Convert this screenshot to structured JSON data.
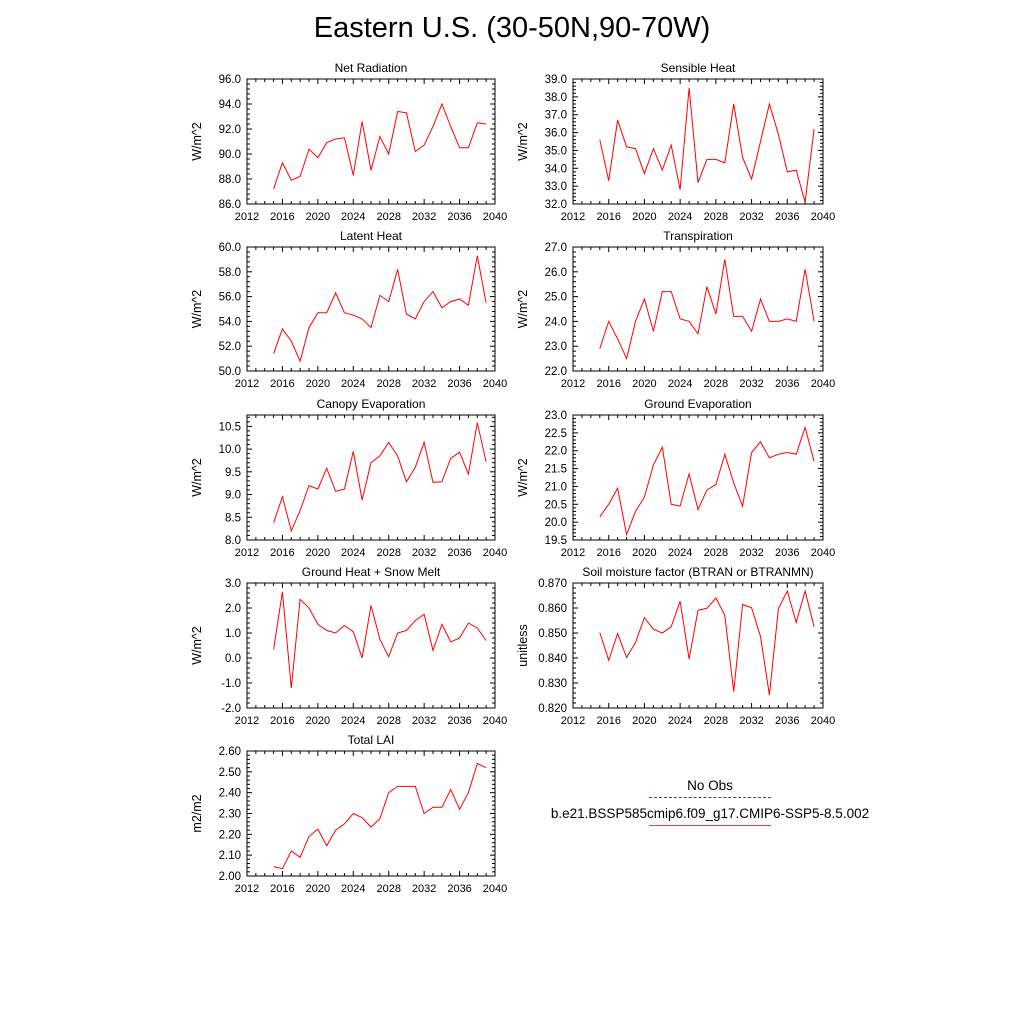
{
  "title": "Eastern U.S. (30-50N,90-70W)",
  "legend": {
    "items": [
      {
        "label": "No Obs",
        "color": "#3b3ba0",
        "style": "dashed"
      },
      {
        "label": "b.e21.BSSP585cmip6.f09_g17.CMIP6-SSP5-8.5.002",
        "color": "#ff0000",
        "style": "solid"
      }
    ]
  },
  "line_color": "#ff0000",
  "chart_data": [
    {
      "type": "line",
      "title": "Net Radiation",
      "ylabel": "W/m^2",
      "xlim": [
        2012,
        2040
      ],
      "xticks": [
        2012,
        2016,
        2020,
        2024,
        2028,
        2032,
        2036,
        2040
      ],
      "ylim": [
        86.0,
        96.0
      ],
      "yticks": [
        "86.0",
        "88.0",
        "90.0",
        "92.0",
        "94.0",
        "96.0"
      ],
      "x": [
        2015,
        2016,
        2017,
        2018,
        2019,
        2020,
        2021,
        2022,
        2023,
        2024,
        2025,
        2026,
        2027,
        2028,
        2029,
        2030,
        2031,
        2032,
        2033,
        2034,
        2035,
        2036,
        2037,
        2038,
        2039
      ],
      "y": [
        87.2,
        89.3,
        87.9,
        88.2,
        90.4,
        89.7,
        90.9,
        91.2,
        91.3,
        88.3,
        92.6,
        88.7,
        91.4,
        90.0,
        93.4,
        93.3,
        90.2,
        90.7,
        92.2,
        94.0,
        92.2,
        90.5,
        90.5,
        92.5,
        92.4
      ]
    },
    {
      "type": "line",
      "title": "Sensible Heat",
      "ylabel": "W/m^2",
      "xlim": [
        2012,
        2040
      ],
      "xticks": [
        2012,
        2016,
        2020,
        2024,
        2028,
        2032,
        2036,
        2040
      ],
      "ylim": [
        32.0,
        39.0
      ],
      "yticks": [
        "32.0",
        "33.0",
        "34.0",
        "35.0",
        "36.0",
        "37.0",
        "38.0",
        "39.0"
      ],
      "x": [
        2015,
        2016,
        2017,
        2018,
        2019,
        2020,
        2021,
        2022,
        2023,
        2024,
        2025,
        2026,
        2027,
        2028,
        2029,
        2030,
        2031,
        2032,
        2033,
        2034,
        2035,
        2036,
        2037,
        2038,
        2039
      ],
      "y": [
        35.6,
        33.3,
        36.7,
        35.2,
        35.1,
        33.7,
        35.1,
        33.9,
        35.3,
        32.8,
        38.5,
        33.2,
        34.5,
        34.5,
        34.3,
        37.6,
        34.6,
        33.4,
        35.5,
        37.6,
        35.9,
        33.8,
        33.9,
        32.1,
        36.2
      ]
    },
    {
      "type": "line",
      "title": "Latent Heat",
      "ylabel": "W/m^2",
      "xlim": [
        2012,
        2040
      ],
      "xticks": [
        2012,
        2016,
        2020,
        2024,
        2028,
        2032,
        2036,
        2040
      ],
      "ylim": [
        50.0,
        60.0
      ],
      "yticks": [
        "50.0",
        "52.0",
        "54.0",
        "56.0",
        "58.0",
        "60.0"
      ],
      "x": [
        2015,
        2016,
        2017,
        2018,
        2019,
        2020,
        2021,
        2022,
        2023,
        2024,
        2025,
        2026,
        2027,
        2028,
        2029,
        2030,
        2031,
        2032,
        2033,
        2034,
        2035,
        2036,
        2037,
        2038,
        2039
      ],
      "y": [
        51.4,
        53.4,
        52.4,
        50.8,
        53.5,
        54.7,
        54.7,
        56.3,
        54.7,
        54.5,
        54.2,
        53.5,
        56.1,
        55.6,
        58.2,
        54.6,
        54.2,
        55.6,
        56.4,
        55.1,
        55.6,
        55.8,
        55.3,
        59.3,
        55.5
      ]
    },
    {
      "type": "line",
      "title": "Transpiration",
      "ylabel": "W/m^2",
      "xlim": [
        2012,
        2040
      ],
      "xticks": [
        2012,
        2016,
        2020,
        2024,
        2028,
        2032,
        2036,
        2040
      ],
      "ylim": [
        22.0,
        27.0
      ],
      "yticks": [
        "22.0",
        "23.0",
        "24.0",
        "25.0",
        "26.0",
        "27.0"
      ],
      "x": [
        2015,
        2016,
        2017,
        2018,
        2019,
        2020,
        2021,
        2022,
        2023,
        2024,
        2025,
        2026,
        2027,
        2028,
        2029,
        2030,
        2031,
        2032,
        2033,
        2034,
        2035,
        2036,
        2037,
        2038,
        2039
      ],
      "y": [
        22.9,
        24.0,
        23.3,
        22.5,
        24.0,
        24.9,
        23.6,
        25.2,
        25.2,
        24.1,
        24.0,
        23.5,
        25.4,
        24.3,
        26.5,
        24.2,
        24.2,
        23.6,
        24.9,
        24.0,
        24.0,
        24.1,
        24.0,
        26.1,
        24.0
      ]
    },
    {
      "type": "line",
      "title": "Canopy Evaporation",
      "ylabel": "W/m^2",
      "xlim": [
        2012,
        2040
      ],
      "xticks": [
        2012,
        2016,
        2020,
        2024,
        2028,
        2032,
        2036,
        2040
      ],
      "ylim": [
        8.0,
        10.75
      ],
      "yticks": [
        "8.0",
        "8.5",
        "9.0",
        "9.5",
        "10.0",
        "10.5"
      ],
      "ytickvals": [
        8.0,
        8.5,
        9.0,
        9.5,
        10.0,
        10.5
      ],
      "x": [
        2015,
        2016,
        2017,
        2018,
        2019,
        2020,
        2021,
        2022,
        2023,
        2024,
        2025,
        2026,
        2027,
        2028,
        2029,
        2030,
        2031,
        2032,
        2033,
        2034,
        2035,
        2036,
        2037,
        2038,
        2039
      ],
      "y": [
        8.38,
        8.95,
        8.2,
        8.65,
        9.2,
        9.12,
        9.58,
        9.07,
        9.12,
        9.95,
        8.88,
        9.7,
        9.85,
        10.15,
        9.85,
        9.28,
        9.6,
        10.15,
        9.27,
        9.28,
        9.8,
        9.93,
        9.45,
        10.58,
        9.72
      ]
    },
    {
      "type": "line",
      "title": "Ground Evaporation",
      "ylabel": "W/m^2",
      "xlim": [
        2012,
        2040
      ],
      "xticks": [
        2012,
        2016,
        2020,
        2024,
        2028,
        2032,
        2036,
        2040
      ],
      "ylim": [
        19.5,
        23.0
      ],
      "yticks": [
        "19.5",
        "20.0",
        "20.5",
        "21.0",
        "21.5",
        "22.0",
        "22.5",
        "23.0"
      ],
      "x": [
        2015,
        2016,
        2017,
        2018,
        2019,
        2020,
        2021,
        2022,
        2023,
        2024,
        2025,
        2026,
        2027,
        2028,
        2029,
        2030,
        2031,
        2032,
        2033,
        2034,
        2035,
        2036,
        2037,
        2038,
        2039
      ],
      "y": [
        20.15,
        20.5,
        20.95,
        19.65,
        20.3,
        20.7,
        21.6,
        22.1,
        20.5,
        20.45,
        21.35,
        20.35,
        20.9,
        21.05,
        21.9,
        21.1,
        20.45,
        21.95,
        22.25,
        21.8,
        21.9,
        21.95,
        21.9,
        22.65,
        21.7
      ]
    },
    {
      "type": "line",
      "title": "Ground Heat + Snow Melt",
      "ylabel": "W/m^2",
      "xlim": [
        2012,
        2040
      ],
      "xticks": [
        2012,
        2016,
        2020,
        2024,
        2028,
        2032,
        2036,
        2040
      ],
      "ylim": [
        -2.0,
        3.0
      ],
      "yticks": [
        "-2.0",
        "-1.0",
        "0.0",
        "1.0",
        "2.0",
        "3.0"
      ],
      "x": [
        2015,
        2016,
        2017,
        2018,
        2019,
        2020,
        2021,
        2022,
        2023,
        2024,
        2025,
        2026,
        2027,
        2028,
        2029,
        2030,
        2031,
        2032,
        2033,
        2034,
        2035,
        2036,
        2037,
        2038,
        2039
      ],
      "y": [
        0.35,
        2.65,
        -1.2,
        2.35,
        2.0,
        1.35,
        1.1,
        1.0,
        1.3,
        1.05,
        0.0,
        2.1,
        0.75,
        0.05,
        1.0,
        1.1,
        1.5,
        1.75,
        0.3,
        1.35,
        0.65,
        0.8,
        1.4,
        1.2,
        0.7
      ]
    },
    {
      "type": "line",
      "title": "Soil moisture factor (BTRAN or BTRANMN)",
      "ylabel": "unitless",
      "xlim": [
        2012,
        2040
      ],
      "xticks": [
        2012,
        2016,
        2020,
        2024,
        2028,
        2032,
        2036,
        2040
      ],
      "ylim": [
        0.82,
        0.87
      ],
      "yticks": [
        "0.820",
        "0.830",
        "0.840",
        "0.850",
        "0.860",
        "0.870"
      ],
      "x": [
        2015,
        2016,
        2017,
        2018,
        2019,
        2020,
        2021,
        2022,
        2023,
        2024,
        2025,
        2026,
        2027,
        2028,
        2029,
        2030,
        2031,
        2032,
        2033,
        2034,
        2035,
        2036,
        2037,
        2038,
        2039
      ],
      "y": [
        0.8502,
        0.8391,
        0.8498,
        0.8402,
        0.8462,
        0.8562,
        0.8515,
        0.85,
        0.8525,
        0.8627,
        0.8396,
        0.8591,
        0.8599,
        0.864,
        0.8571,
        0.8265,
        0.8614,
        0.8601,
        0.8486,
        0.8252,
        0.8597,
        0.8668,
        0.8542,
        0.8668,
        0.8524
      ]
    },
    {
      "type": "line",
      "title": "Total LAI",
      "ylabel": "m2/m2",
      "xlim": [
        2012,
        2040
      ],
      "xticks": [
        2012,
        2016,
        2020,
        2024,
        2028,
        2032,
        2036,
        2040
      ],
      "ylim": [
        2.0,
        2.6
      ],
      "yticks": [
        "2.00",
        "2.10",
        "2.20",
        "2.30",
        "2.40",
        "2.50",
        "2.60"
      ],
      "x": [
        2015,
        2016,
        2017,
        2018,
        2019,
        2020,
        2021,
        2022,
        2023,
        2024,
        2025,
        2026,
        2027,
        2028,
        2029,
        2030,
        2031,
        2032,
        2033,
        2034,
        2035,
        2036,
        2037,
        2038,
        2039
      ],
      "y": [
        2.045,
        2.035,
        2.12,
        2.09,
        2.19,
        2.225,
        2.145,
        2.22,
        2.25,
        2.3,
        2.28,
        2.235,
        2.275,
        2.4,
        2.43,
        2.43,
        2.43,
        2.3,
        2.33,
        2.33,
        2.415,
        2.32,
        2.4,
        2.54,
        2.52
      ]
    }
  ]
}
